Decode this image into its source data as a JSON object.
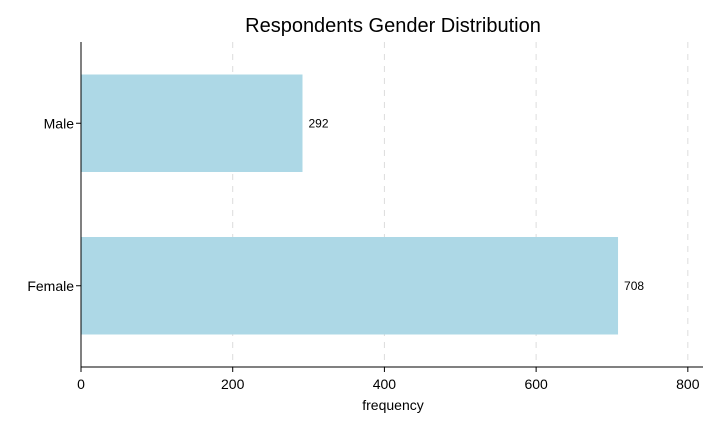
{
  "chart_data": {
    "type": "bar",
    "orientation": "horizontal",
    "title": "Respondents Gender Distribution",
    "xlabel": "frequency",
    "ylabel": "",
    "categories": [
      "Male",
      "Female"
    ],
    "values": [
      292,
      708
    ],
    "data_labels": [
      "292",
      "708"
    ],
    "xlim": [
      0,
      820
    ],
    "xticks": [
      0,
      200,
      400,
      600,
      800
    ],
    "xtick_labels": [
      "0",
      "200",
      "400",
      "600",
      "800"
    ],
    "grid": "vertical dashed",
    "legend": "none",
    "bar_color": "#add8e6"
  }
}
